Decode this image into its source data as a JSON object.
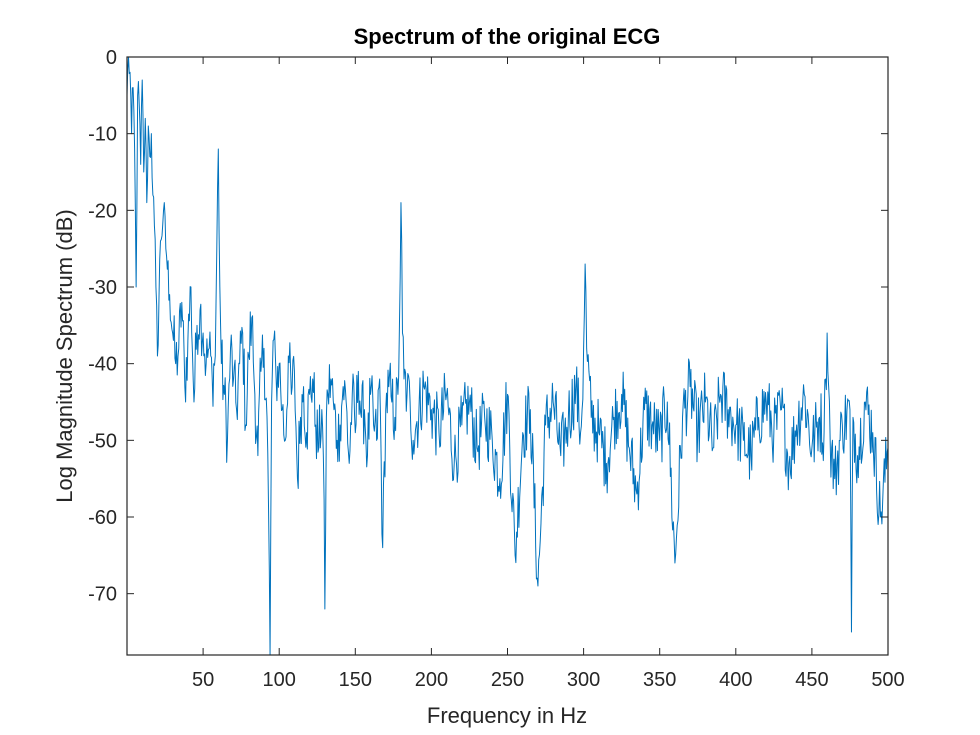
{
  "chart_data": {
    "type": "line",
    "title": "Spectrum of the original ECG",
    "xlabel": "Frequency in Hz",
    "ylabel": "Log Magnitude Spectrum (dB)",
    "xlim": [
      0,
      500
    ],
    "ylim": [
      -78,
      0
    ],
    "xticks": [
      50,
      100,
      150,
      200,
      250,
      300,
      350,
      400,
      450,
      500
    ],
    "yticks": [
      0,
      -10,
      -20,
      -30,
      -40,
      -50,
      -60,
      -70
    ],
    "grid": false,
    "line_color": "#0072BD",
    "x_start": 0,
    "x_step": 0.5,
    "frame_points": 1001,
    "series": [
      {
        "x": [
          0,
          1,
          2,
          3,
          4,
          5,
          6,
          7,
          8,
          9,
          10,
          11,
          12,
          13,
          14,
          15,
          16,
          17,
          18,
          19,
          20,
          22,
          24,
          26,
          28,
          30,
          32,
          34,
          36,
          38,
          40,
          42,
          44,
          46,
          48,
          50,
          52,
          54,
          56,
          58,
          59,
          60,
          61,
          62,
          64,
          66,
          68,
          70,
          72,
          74,
          76,
          78,
          80,
          82,
          84,
          86,
          88,
          90,
          92,
          93,
          94,
          95,
          96,
          98,
          100,
          102,
          104,
          106,
          108,
          110,
          112,
          114,
          116,
          118,
          120,
          122,
          124,
          126,
          128,
          129,
          130,
          131,
          132,
          134,
          136,
          138,
          140,
          142,
          144,
          146,
          148,
          150,
          152,
          154,
          156,
          158,
          160,
          162,
          164,
          166,
          168,
          170,
          172,
          174,
          176,
          178,
          179,
          180,
          181,
          182,
          184,
          186,
          188,
          190,
          195,
          200,
          205,
          210,
          215,
          220,
          225,
          230,
          235,
          240,
          245,
          250,
          255,
          260,
          265,
          270,
          275,
          280,
          285,
          290,
          295,
          298,
          299,
          300,
          301,
          302,
          305,
          310,
          315,
          320,
          325,
          330,
          335,
          340,
          345,
          350,
          355,
          360,
          365,
          370,
          375,
          380,
          385,
          390,
          395,
          400,
          405,
          410,
          415,
          420,
          425,
          430,
          435,
          440,
          445,
          450,
          455,
          458,
          459,
          460,
          461,
          462,
          465,
          470,
          475,
          476,
          477,
          480,
          485,
          490,
          495,
          500
        ],
        "y": [
          -5,
          0,
          -2,
          -10,
          -4,
          -12,
          -30,
          -5,
          -6,
          -14,
          -3,
          -15,
          -8,
          -19,
          -9,
          -13,
          -10,
          -18,
          -22,
          -30,
          -39,
          -24,
          -20,
          -26,
          -31,
          -36,
          -40,
          -38,
          -32,
          -43,
          -37,
          -30,
          -45,
          -35,
          -33,
          -36,
          -40,
          -38,
          -42,
          -39,
          -25,
          -12,
          -30,
          -40,
          -44,
          -50,
          -38,
          -42,
          -46,
          -40,
          -36,
          -48,
          -39,
          -34,
          -44,
          -52,
          -41,
          -38,
          -47,
          -59,
          -78,
          -45,
          -37,
          -42,
          -40,
          -46,
          -50,
          -39,
          -44,
          -41,
          -55,
          -47,
          -43,
          -49,
          -44,
          -42,
          -48,
          -51,
          -46,
          -52,
          -72,
          -47,
          -44,
          -42,
          -46,
          -50,
          -48,
          -43,
          -45,
          -53,
          -44,
          -49,
          -41,
          -47,
          -46,
          -52,
          -44,
          -48,
          -50,
          -42,
          -64,
          -46,
          -43,
          -45,
          -47,
          -44,
          -35,
          -19,
          -36,
          -42,
          -44,
          -45,
          -50,
          -48,
          -43,
          -46,
          -49,
          -44,
          -53,
          -48,
          -45,
          -51,
          -47,
          -50,
          -55,
          -44,
          -65,
          -49,
          -46,
          -69,
          -48,
          -45,
          -52,
          -47,
          -43,
          -49,
          -46,
          -38,
          -27,
          -38,
          -47,
          -49,
          -53,
          -47,
          -44,
          -51,
          -57,
          -46,
          -48,
          -50,
          -45,
          -66,
          -47,
          -43,
          -49,
          -45,
          -51,
          -44,
          -46,
          -48,
          -50,
          -52,
          -47,
          -45,
          -49,
          -46,
          -53,
          -48,
          -44,
          -51,
          -47,
          -49,
          -42,
          -36,
          -43,
          -50,
          -55,
          -48,
          -46,
          -75,
          -47,
          -52,
          -45,
          -49,
          -60,
          -51
        ]
      }
    ]
  }
}
